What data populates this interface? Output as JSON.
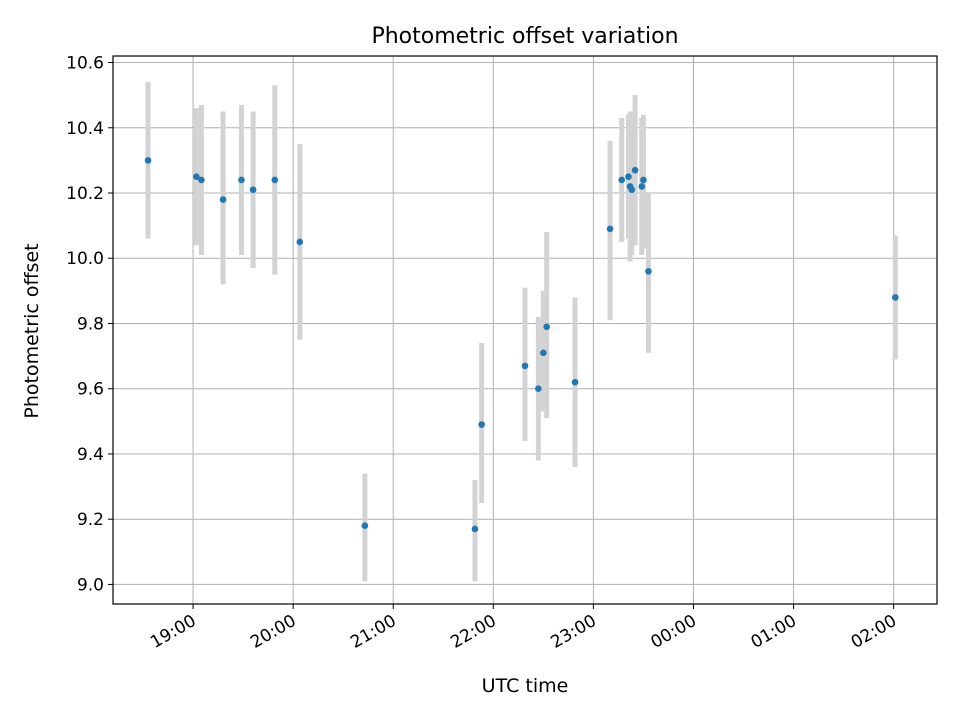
{
  "chart_data": {
    "type": "scatter",
    "title": "Photometric offset variation",
    "xlabel": "UTC time",
    "ylabel": "Photometric offset",
    "x_ticks": [
      "19:00",
      "20:00",
      "21:00",
      "22:00",
      "23:00",
      "00:00",
      "01:00",
      "02:00"
    ],
    "y_ticks": [
      "9.0",
      "9.2",
      "9.4",
      "9.6",
      "9.8",
      "10.0",
      "10.2",
      "10.4",
      "10.6"
    ],
    "xlim": [
      "18:12",
      "02:26"
    ],
    "ylim": [
      8.94,
      10.62
    ],
    "grid": true,
    "colors": {
      "point": "#1f77b4",
      "errorbar": "#d3d3d3",
      "grid": "#b0b0b0"
    },
    "points": [
      {
        "time": "18:33",
        "y": 10.3,
        "err_low": 10.06,
        "err_high": 10.54
      },
      {
        "time": "19:02",
        "y": 10.25,
        "err_low": 10.04,
        "err_high": 10.46
      },
      {
        "time": "19:05",
        "y": 10.24,
        "err_low": 10.01,
        "err_high": 10.47
      },
      {
        "time": "19:18",
        "y": 10.18,
        "err_low": 9.92,
        "err_high": 10.45
      },
      {
        "time": "19:29",
        "y": 10.24,
        "err_low": 10.01,
        "err_high": 10.47
      },
      {
        "time": "19:36",
        "y": 10.21,
        "err_low": 9.97,
        "err_high": 10.45
      },
      {
        "time": "19:49",
        "y": 10.24,
        "err_low": 9.95,
        "err_high": 10.53
      },
      {
        "time": "20:04",
        "y": 10.05,
        "err_low": 9.75,
        "err_high": 10.35
      },
      {
        "time": "20:43",
        "y": 9.18,
        "err_low": 9.01,
        "err_high": 9.34
      },
      {
        "time": "21:49",
        "y": 9.17,
        "err_low": 9.01,
        "err_high": 9.32
      },
      {
        "time": "21:53",
        "y": 9.49,
        "err_low": 9.25,
        "err_high": 9.74
      },
      {
        "time": "22:19",
        "y": 9.67,
        "err_low": 9.44,
        "err_high": 9.91
      },
      {
        "time": "22:27",
        "y": 9.6,
        "err_low": 9.38,
        "err_high": 9.82
      },
      {
        "time": "22:30",
        "y": 9.71,
        "err_low": 9.53,
        "err_high": 9.9
      },
      {
        "time": "22:32",
        "y": 9.79,
        "err_low": 9.51,
        "err_high": 10.08
      },
      {
        "time": "22:49",
        "y": 9.62,
        "err_low": 9.36,
        "err_high": 9.88
      },
      {
        "time": "23:10",
        "y": 10.09,
        "err_low": 9.81,
        "err_high": 10.36
      },
      {
        "time": "23:17",
        "y": 10.24,
        "err_low": 10.05,
        "err_high": 10.43
      },
      {
        "time": "23:21",
        "y": 10.25,
        "err_low": 10.06,
        "err_high": 10.44
      },
      {
        "time": "23:22",
        "y": 10.22,
        "err_low": 9.99,
        "err_high": 10.45
      },
      {
        "time": "23:23",
        "y": 10.21,
        "err_low": 10.01,
        "err_high": 10.42
      },
      {
        "time": "23:25",
        "y": 10.27,
        "err_low": 10.04,
        "err_high": 10.5
      },
      {
        "time": "23:29",
        "y": 10.22,
        "err_low": 10.01,
        "err_high": 10.43
      },
      {
        "time": "23:30",
        "y": 10.24,
        "err_low": 10.03,
        "err_high": 10.44
      },
      {
        "time": "23:33",
        "y": 9.96,
        "err_low": 9.71,
        "err_high": 10.2
      },
      {
        "time": "02:01",
        "y": 9.88,
        "err_low": 9.69,
        "err_high": 10.07
      }
    ]
  }
}
